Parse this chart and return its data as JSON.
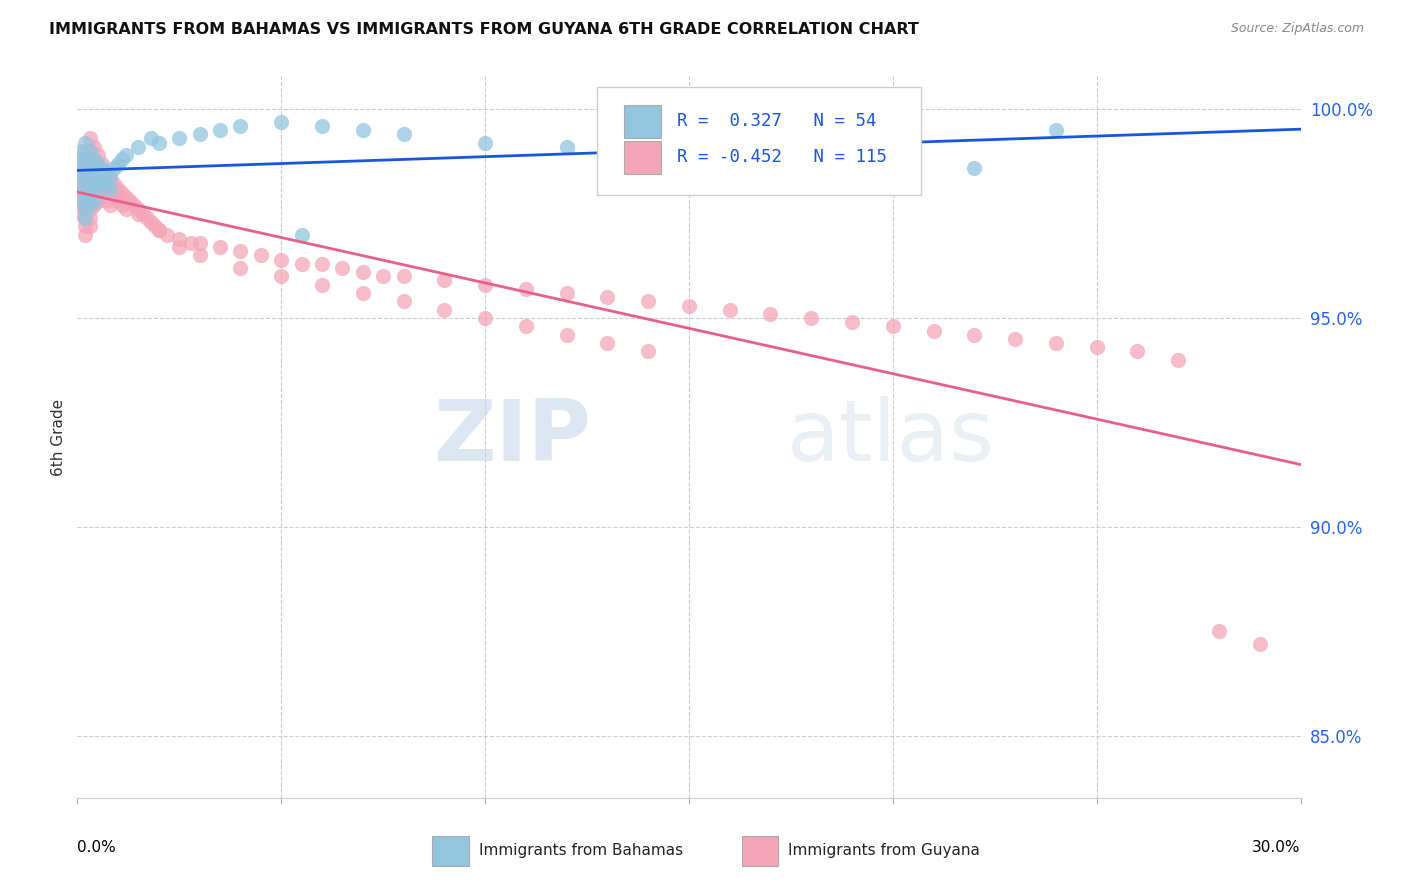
{
  "title": "IMMIGRANTS FROM BAHAMAS VS IMMIGRANTS FROM GUYANA 6TH GRADE CORRELATION CHART",
  "source": "Source: ZipAtlas.com",
  "ylabel": "6th Grade",
  "yticks": [
    85.0,
    90.0,
    95.0,
    100.0
  ],
  "xmin": 0.0,
  "xmax": 0.3,
  "ymin": 0.835,
  "ymax": 1.008,
  "legend1_r": "0.327",
  "legend1_n": "54",
  "legend2_r": "-0.452",
  "legend2_n": "115",
  "color_blue": "#92c5de",
  "color_pink": "#f4a6b8",
  "trendline_blue": "#1a56db",
  "trendline_pink": "#e8608a",
  "watermark_zip": "ZIP",
  "watermark_atlas": "atlas",
  "bahamas_x": [
    0.001,
    0.001,
    0.001,
    0.001,
    0.001,
    0.002,
    0.002,
    0.002,
    0.002,
    0.002,
    0.002,
    0.002,
    0.003,
    0.003,
    0.003,
    0.003,
    0.003,
    0.004,
    0.004,
    0.004,
    0.004,
    0.005,
    0.005,
    0.005,
    0.006,
    0.006,
    0.007,
    0.007,
    0.008,
    0.008,
    0.009,
    0.01,
    0.011,
    0.012,
    0.015,
    0.018,
    0.02,
    0.025,
    0.03,
    0.035,
    0.04,
    0.05,
    0.06,
    0.07,
    0.08,
    0.1,
    0.12,
    0.14,
    0.16,
    0.18,
    0.2,
    0.22,
    0.24,
    0.055
  ],
  "bahamas_y": [
    0.99,
    0.988,
    0.985,
    0.982,
    0.978,
    0.992,
    0.988,
    0.985,
    0.982,
    0.979,
    0.976,
    0.974,
    0.99,
    0.986,
    0.983,
    0.98,
    0.977,
    0.988,
    0.985,
    0.982,
    0.978,
    0.987,
    0.984,
    0.981,
    0.986,
    0.983,
    0.985,
    0.982,
    0.984,
    0.981,
    0.986,
    0.987,
    0.988,
    0.989,
    0.991,
    0.993,
    0.992,
    0.993,
    0.994,
    0.995,
    0.996,
    0.997,
    0.996,
    0.995,
    0.994,
    0.992,
    0.991,
    0.99,
    0.989,
    0.988,
    0.987,
    0.986,
    0.995,
    0.97
  ],
  "guyana_x": [
    0.001,
    0.001,
    0.001,
    0.001,
    0.001,
    0.001,
    0.002,
    0.002,
    0.002,
    0.002,
    0.002,
    0.002,
    0.002,
    0.002,
    0.002,
    0.003,
    0.003,
    0.003,
    0.003,
    0.003,
    0.003,
    0.003,
    0.003,
    0.004,
    0.004,
    0.004,
    0.004,
    0.004,
    0.005,
    0.005,
    0.005,
    0.005,
    0.006,
    0.006,
    0.006,
    0.007,
    0.007,
    0.007,
    0.008,
    0.008,
    0.008,
    0.009,
    0.009,
    0.01,
    0.01,
    0.011,
    0.011,
    0.012,
    0.012,
    0.013,
    0.014,
    0.015,
    0.016,
    0.017,
    0.018,
    0.019,
    0.02,
    0.022,
    0.025,
    0.028,
    0.03,
    0.035,
    0.04,
    0.045,
    0.05,
    0.055,
    0.06,
    0.065,
    0.07,
    0.075,
    0.08,
    0.09,
    0.1,
    0.11,
    0.12,
    0.13,
    0.14,
    0.15,
    0.16,
    0.17,
    0.18,
    0.19,
    0.2,
    0.21,
    0.22,
    0.23,
    0.24,
    0.25,
    0.26,
    0.27,
    0.003,
    0.004,
    0.005,
    0.006,
    0.007,
    0.008,
    0.009,
    0.01,
    0.015,
    0.02,
    0.025,
    0.03,
    0.04,
    0.05,
    0.06,
    0.07,
    0.08,
    0.09,
    0.1,
    0.11,
    0.12,
    0.13,
    0.14,
    0.28,
    0.29
  ],
  "guyana_y": [
    0.988,
    0.985,
    0.982,
    0.98,
    0.978,
    0.975,
    0.99,
    0.987,
    0.984,
    0.981,
    0.978,
    0.976,
    0.974,
    0.972,
    0.97,
    0.99,
    0.987,
    0.984,
    0.981,
    0.978,
    0.976,
    0.974,
    0.972,
    0.988,
    0.985,
    0.982,
    0.979,
    0.977,
    0.986,
    0.983,
    0.98,
    0.978,
    0.985,
    0.982,
    0.979,
    0.984,
    0.981,
    0.978,
    0.983,
    0.98,
    0.977,
    0.982,
    0.979,
    0.981,
    0.978,
    0.98,
    0.977,
    0.979,
    0.976,
    0.978,
    0.977,
    0.976,
    0.975,
    0.974,
    0.973,
    0.972,
    0.971,
    0.97,
    0.969,
    0.968,
    0.968,
    0.967,
    0.966,
    0.965,
    0.964,
    0.963,
    0.963,
    0.962,
    0.961,
    0.96,
    0.96,
    0.959,
    0.958,
    0.957,
    0.956,
    0.955,
    0.954,
    0.953,
    0.952,
    0.951,
    0.95,
    0.949,
    0.948,
    0.947,
    0.946,
    0.945,
    0.944,
    0.943,
    0.942,
    0.94,
    0.993,
    0.991,
    0.989,
    0.987,
    0.985,
    0.983,
    0.981,
    0.979,
    0.975,
    0.971,
    0.967,
    0.965,
    0.962,
    0.96,
    0.958,
    0.956,
    0.954,
    0.952,
    0.95,
    0.948,
    0.946,
    0.944,
    0.942,
    0.875,
    0.872
  ]
}
